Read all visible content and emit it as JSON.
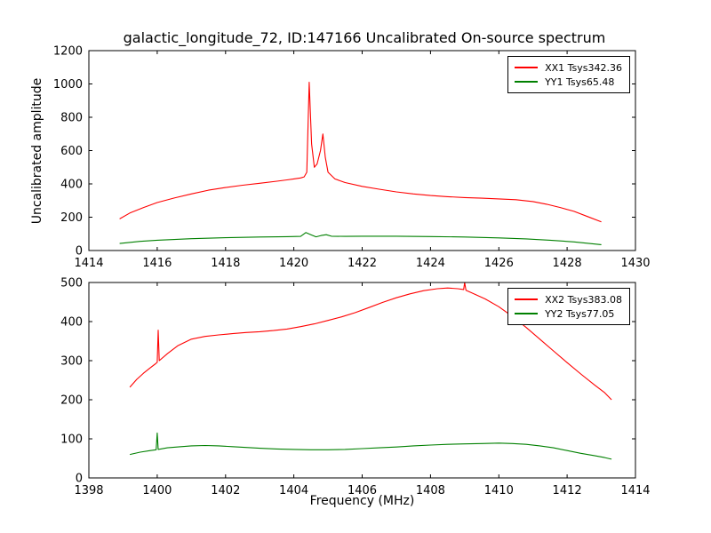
{
  "chart_data": [
    {
      "type": "line",
      "title": "galactic_longitude_72, ID:147166 Uncalibrated On-source spectrum",
      "ylabel": "Uncalibrated amplitude",
      "xlabel": "",
      "xlim": [
        1414,
        1430
      ],
      "ylim": [
        0,
        1200
      ],
      "xticks": [
        1414,
        1416,
        1418,
        1420,
        1422,
        1424,
        1426,
        1428,
        1430
      ],
      "yticks": [
        0,
        200,
        400,
        600,
        800,
        1000,
        1200
      ],
      "grid": false,
      "legend_position": "upper right",
      "series": [
        {
          "name": "XX1 Tsys342.36",
          "color": "#ff0000",
          "x": [
            1414.9,
            1415.2,
            1415.6,
            1416.0,
            1416.5,
            1417.0,
            1417.5,
            1418.0,
            1418.5,
            1419.0,
            1419.5,
            1419.8,
            1420.0,
            1420.2,
            1420.3,
            1420.38,
            1420.45,
            1420.52,
            1420.6,
            1420.68,
            1420.78,
            1420.85,
            1420.92,
            1421.0,
            1421.2,
            1421.5,
            1422.0,
            1422.5,
            1423.0,
            1423.5,
            1424.0,
            1424.5,
            1425.0,
            1425.5,
            1426.0,
            1426.5,
            1427.0,
            1427.4,
            1427.8,
            1428.2,
            1428.6,
            1429.0
          ],
          "y": [
            190,
            225,
            258,
            288,
            315,
            340,
            362,
            378,
            392,
            404,
            416,
            424,
            430,
            436,
            442,
            470,
            1010,
            640,
            500,
            520,
            600,
            700,
            560,
            470,
            430,
            408,
            385,
            368,
            352,
            340,
            330,
            323,
            318,
            314,
            310,
            305,
            294,
            278,
            258,
            235,
            204,
            172
          ]
        },
        {
          "name": "YY1 Tsys65.48",
          "color": "#008000",
          "x": [
            1414.9,
            1415.5,
            1416.0,
            1417.0,
            1418.0,
            1419.0,
            1419.8,
            1420.2,
            1420.35,
            1420.5,
            1420.65,
            1420.8,
            1420.95,
            1421.1,
            1421.5,
            1422.0,
            1423.0,
            1424.0,
            1425.0,
            1426.0,
            1426.8,
            1427.5,
            1428.2,
            1429.0
          ],
          "y": [
            42,
            55,
            62,
            71,
            77,
            81,
            83,
            85,
            108,
            95,
            82,
            90,
            95,
            86,
            85,
            86,
            86,
            84,
            81,
            76,
            70,
            62,
            52,
            35
          ]
        }
      ]
    },
    {
      "type": "line",
      "title": "",
      "ylabel": "",
      "xlabel": "Frequency (MHz)",
      "xlim": [
        1398,
        1414
      ],
      "ylim": [
        0,
        500
      ],
      "xticks": [
        1398,
        1400,
        1402,
        1404,
        1406,
        1408,
        1410,
        1412,
        1414
      ],
      "yticks": [
        0,
        100,
        200,
        300,
        400,
        500
      ],
      "grid": false,
      "legend_position": "upper right",
      "series": [
        {
          "name": "XX2 Tsys383.08",
          "color": "#ff0000",
          "x": [
            1399.2,
            1399.4,
            1399.6,
            1399.8,
            1399.95,
            1400.0,
            1400.03,
            1400.06,
            1400.3,
            1400.6,
            1401.0,
            1401.4,
            1401.8,
            1402.2,
            1402.6,
            1403.0,
            1403.4,
            1403.8,
            1404.2,
            1404.6,
            1405.0,
            1405.4,
            1405.8,
            1406.2,
            1406.6,
            1407.0,
            1407.4,
            1407.8,
            1408.2,
            1408.5,
            1408.8,
            1408.97,
            1409.0,
            1409.04,
            1409.3,
            1409.6,
            1410.0,
            1410.4,
            1410.8,
            1411.2,
            1411.6,
            1412.0,
            1412.4,
            1412.8,
            1413.1,
            1413.3
          ],
          "y": [
            232,
            252,
            268,
            282,
            292,
            296,
            378,
            300,
            318,
            338,
            355,
            362,
            366,
            369,
            372,
            374,
            377,
            381,
            387,
            394,
            403,
            412,
            423,
            436,
            449,
            461,
            471,
            479,
            484,
            486,
            484,
            482,
            500,
            480,
            470,
            458,
            438,
            413,
            385,
            355,
            325,
            295,
            266,
            238,
            218,
            200
          ]
        },
        {
          "name": "YY2 Tsys77.05",
          "color": "#008000",
          "x": [
            1399.2,
            1399.5,
            1399.8,
            1399.97,
            1400.0,
            1400.03,
            1400.3,
            1400.7,
            1401.0,
            1401.4,
            1401.8,
            1402.2,
            1402.6,
            1403.0,
            1403.5,
            1404.0,
            1404.5,
            1405.0,
            1405.5,
            1406.0,
            1406.5,
            1407.0,
            1407.5,
            1408.0,
            1408.5,
            1409.0,
            1409.5,
            1410.0,
            1410.4,
            1410.8,
            1411.2,
            1411.6,
            1412.0,
            1412.4,
            1412.8,
            1413.1,
            1413.3
          ],
          "y": [
            60,
            66,
            70,
            72,
            115,
            73,
            77,
            80,
            82,
            83,
            82,
            80,
            78,
            76,
            74,
            73,
            72,
            72,
            73,
            75,
            77,
            79,
            82,
            84,
            86,
            87,
            88,
            89,
            88,
            86,
            82,
            77,
            70,
            63,
            57,
            52,
            48
          ]
        }
      ]
    }
  ]
}
